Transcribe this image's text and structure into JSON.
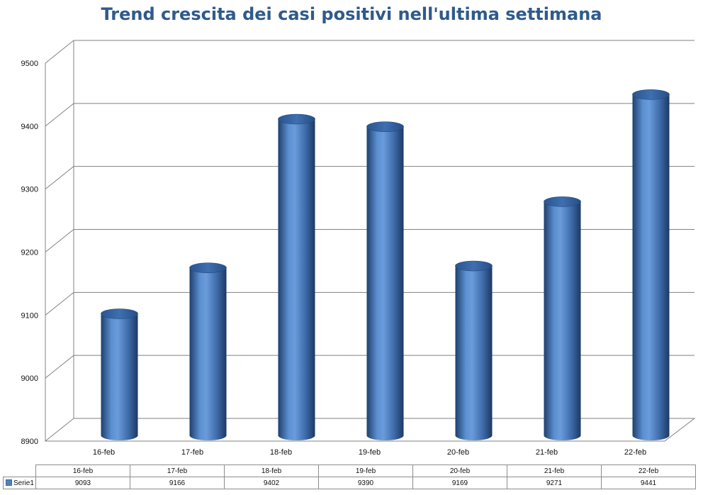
{
  "chart_data": {
    "type": "bar",
    "title": "Trend crescita dei casi positivi nell'ultima settimana",
    "categories": [
      "16-feb",
      "17-feb",
      "18-feb",
      "19-feb",
      "20-feb",
      "21-feb",
      "22-feb"
    ],
    "series": [
      {
        "name": "Serie1",
        "values": [
          9093,
          9166,
          9402,
          9390,
          9169,
          9271,
          9441
        ]
      }
    ],
    "ylim": [
      8900,
      9500
    ],
    "yticks": [
      8900,
      9000,
      9100,
      9200,
      9300,
      9400,
      9500
    ],
    "grid": true,
    "bar_shape": "cylinder",
    "bar_color": "#4f81bd",
    "gridline_color": "#808080",
    "data_table": true
  },
  "colors": {
    "title": "#2f5a8c",
    "bar": "#4f81bd"
  }
}
